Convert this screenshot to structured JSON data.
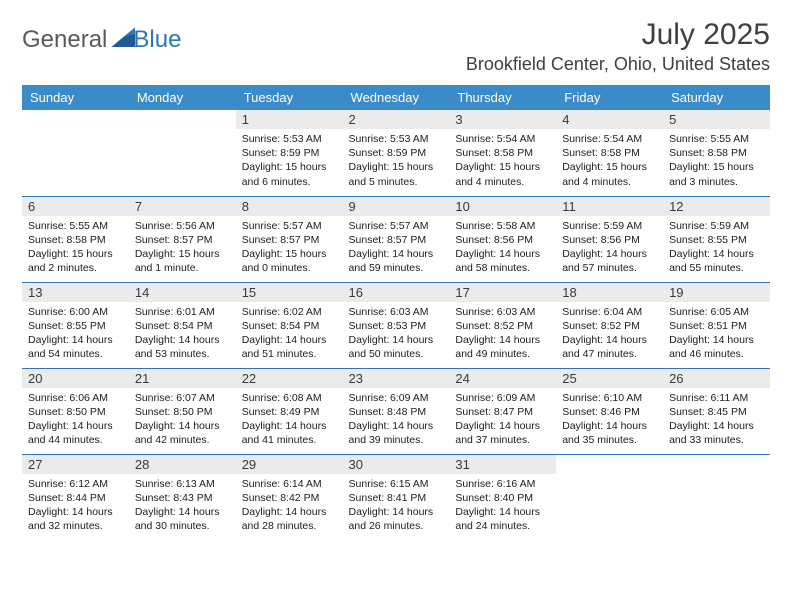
{
  "logo": {
    "word1": "General",
    "word2": "Blue"
  },
  "title": "July 2025",
  "location": "Brookfield Center, Ohio, United States",
  "header_bg": "#3b8bc9",
  "border_color": "#2e75b6",
  "daynum_bg": "#ebebeb",
  "weekdays": [
    "Sunday",
    "Monday",
    "Tuesday",
    "Wednesday",
    "Thursday",
    "Friday",
    "Saturday"
  ],
  "weeks": [
    [
      null,
      null,
      {
        "n": "1",
        "sr": "Sunrise: 5:53 AM",
        "ss": "Sunset: 8:59 PM",
        "dl": "Daylight: 15 hours and 6 minutes."
      },
      {
        "n": "2",
        "sr": "Sunrise: 5:53 AM",
        "ss": "Sunset: 8:59 PM",
        "dl": "Daylight: 15 hours and 5 minutes."
      },
      {
        "n": "3",
        "sr": "Sunrise: 5:54 AM",
        "ss": "Sunset: 8:58 PM",
        "dl": "Daylight: 15 hours and 4 minutes."
      },
      {
        "n": "4",
        "sr": "Sunrise: 5:54 AM",
        "ss": "Sunset: 8:58 PM",
        "dl": "Daylight: 15 hours and 4 minutes."
      },
      {
        "n": "5",
        "sr": "Sunrise: 5:55 AM",
        "ss": "Sunset: 8:58 PM",
        "dl": "Daylight: 15 hours and 3 minutes."
      }
    ],
    [
      {
        "n": "6",
        "sr": "Sunrise: 5:55 AM",
        "ss": "Sunset: 8:58 PM",
        "dl": "Daylight: 15 hours and 2 minutes."
      },
      {
        "n": "7",
        "sr": "Sunrise: 5:56 AM",
        "ss": "Sunset: 8:57 PM",
        "dl": "Daylight: 15 hours and 1 minute."
      },
      {
        "n": "8",
        "sr": "Sunrise: 5:57 AM",
        "ss": "Sunset: 8:57 PM",
        "dl": "Daylight: 15 hours and 0 minutes."
      },
      {
        "n": "9",
        "sr": "Sunrise: 5:57 AM",
        "ss": "Sunset: 8:57 PM",
        "dl": "Daylight: 14 hours and 59 minutes."
      },
      {
        "n": "10",
        "sr": "Sunrise: 5:58 AM",
        "ss": "Sunset: 8:56 PM",
        "dl": "Daylight: 14 hours and 58 minutes."
      },
      {
        "n": "11",
        "sr": "Sunrise: 5:59 AM",
        "ss": "Sunset: 8:56 PM",
        "dl": "Daylight: 14 hours and 57 minutes."
      },
      {
        "n": "12",
        "sr": "Sunrise: 5:59 AM",
        "ss": "Sunset: 8:55 PM",
        "dl": "Daylight: 14 hours and 55 minutes."
      }
    ],
    [
      {
        "n": "13",
        "sr": "Sunrise: 6:00 AM",
        "ss": "Sunset: 8:55 PM",
        "dl": "Daylight: 14 hours and 54 minutes."
      },
      {
        "n": "14",
        "sr": "Sunrise: 6:01 AM",
        "ss": "Sunset: 8:54 PM",
        "dl": "Daylight: 14 hours and 53 minutes."
      },
      {
        "n": "15",
        "sr": "Sunrise: 6:02 AM",
        "ss": "Sunset: 8:54 PM",
        "dl": "Daylight: 14 hours and 51 minutes."
      },
      {
        "n": "16",
        "sr": "Sunrise: 6:03 AM",
        "ss": "Sunset: 8:53 PM",
        "dl": "Daylight: 14 hours and 50 minutes."
      },
      {
        "n": "17",
        "sr": "Sunrise: 6:03 AM",
        "ss": "Sunset: 8:52 PM",
        "dl": "Daylight: 14 hours and 49 minutes."
      },
      {
        "n": "18",
        "sr": "Sunrise: 6:04 AM",
        "ss": "Sunset: 8:52 PM",
        "dl": "Daylight: 14 hours and 47 minutes."
      },
      {
        "n": "19",
        "sr": "Sunrise: 6:05 AM",
        "ss": "Sunset: 8:51 PM",
        "dl": "Daylight: 14 hours and 46 minutes."
      }
    ],
    [
      {
        "n": "20",
        "sr": "Sunrise: 6:06 AM",
        "ss": "Sunset: 8:50 PM",
        "dl": "Daylight: 14 hours and 44 minutes."
      },
      {
        "n": "21",
        "sr": "Sunrise: 6:07 AM",
        "ss": "Sunset: 8:50 PM",
        "dl": "Daylight: 14 hours and 42 minutes."
      },
      {
        "n": "22",
        "sr": "Sunrise: 6:08 AM",
        "ss": "Sunset: 8:49 PM",
        "dl": "Daylight: 14 hours and 41 minutes."
      },
      {
        "n": "23",
        "sr": "Sunrise: 6:09 AM",
        "ss": "Sunset: 8:48 PM",
        "dl": "Daylight: 14 hours and 39 minutes."
      },
      {
        "n": "24",
        "sr": "Sunrise: 6:09 AM",
        "ss": "Sunset: 8:47 PM",
        "dl": "Daylight: 14 hours and 37 minutes."
      },
      {
        "n": "25",
        "sr": "Sunrise: 6:10 AM",
        "ss": "Sunset: 8:46 PM",
        "dl": "Daylight: 14 hours and 35 minutes."
      },
      {
        "n": "26",
        "sr": "Sunrise: 6:11 AM",
        "ss": "Sunset: 8:45 PM",
        "dl": "Daylight: 14 hours and 33 minutes."
      }
    ],
    [
      {
        "n": "27",
        "sr": "Sunrise: 6:12 AM",
        "ss": "Sunset: 8:44 PM",
        "dl": "Daylight: 14 hours and 32 minutes."
      },
      {
        "n": "28",
        "sr": "Sunrise: 6:13 AM",
        "ss": "Sunset: 8:43 PM",
        "dl": "Daylight: 14 hours and 30 minutes."
      },
      {
        "n": "29",
        "sr": "Sunrise: 6:14 AM",
        "ss": "Sunset: 8:42 PM",
        "dl": "Daylight: 14 hours and 28 minutes."
      },
      {
        "n": "30",
        "sr": "Sunrise: 6:15 AM",
        "ss": "Sunset: 8:41 PM",
        "dl": "Daylight: 14 hours and 26 minutes."
      },
      {
        "n": "31",
        "sr": "Sunrise: 6:16 AM",
        "ss": "Sunset: 8:40 PM",
        "dl": "Daylight: 14 hours and 24 minutes."
      },
      null,
      null
    ]
  ]
}
